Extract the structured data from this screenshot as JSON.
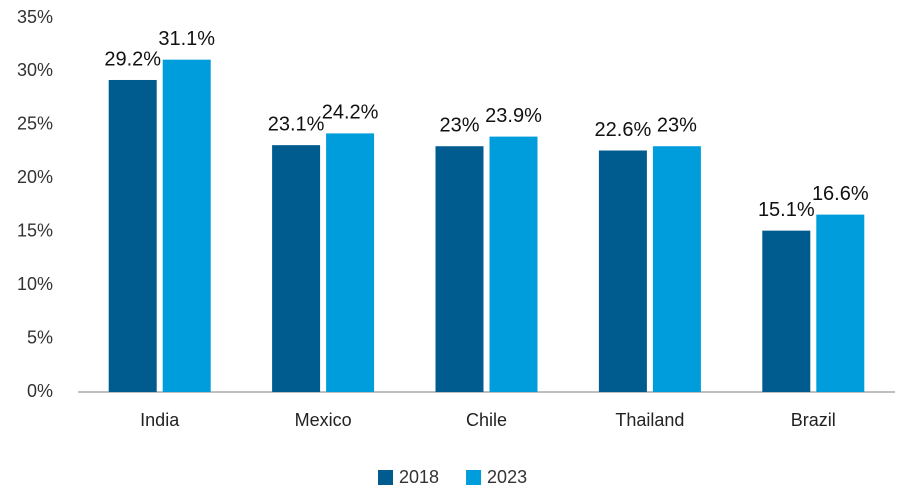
{
  "chart_data": {
    "type": "bar",
    "categories": [
      "India",
      "Mexico",
      "Chile",
      "Thailand",
      "Brazil"
    ],
    "series": [
      {
        "name": "2018",
        "color": "#005b8f",
        "values": [
          29.2,
          23.1,
          23,
          22.6,
          15.1
        ],
        "value_labels": [
          "29.2%",
          "23.1%",
          "23%",
          "22.6%",
          "15.1%"
        ]
      },
      {
        "name": "2023",
        "color": "#009ddc",
        "values": [
          31.1,
          24.2,
          23.9,
          23,
          16.6
        ],
        "value_labels": [
          "31.1%",
          "24.2%",
          "23.9%",
          "23%",
          "16.6%"
        ]
      }
    ],
    "ylim": [
      0,
      35
    ],
    "yticks": [
      {
        "value": 0,
        "label": "0%"
      },
      {
        "value": 5,
        "label": "5%"
      },
      {
        "value": 10,
        "label": "10%"
      },
      {
        "value": 15,
        "label": "15%"
      },
      {
        "value": 20,
        "label": "20%"
      },
      {
        "value": 25,
        "label": "25%"
      },
      {
        "value": 30,
        "label": "30%"
      },
      {
        "value": 35,
        "label": "35%"
      }
    ],
    "grid": false,
    "legend": "bottom"
  }
}
